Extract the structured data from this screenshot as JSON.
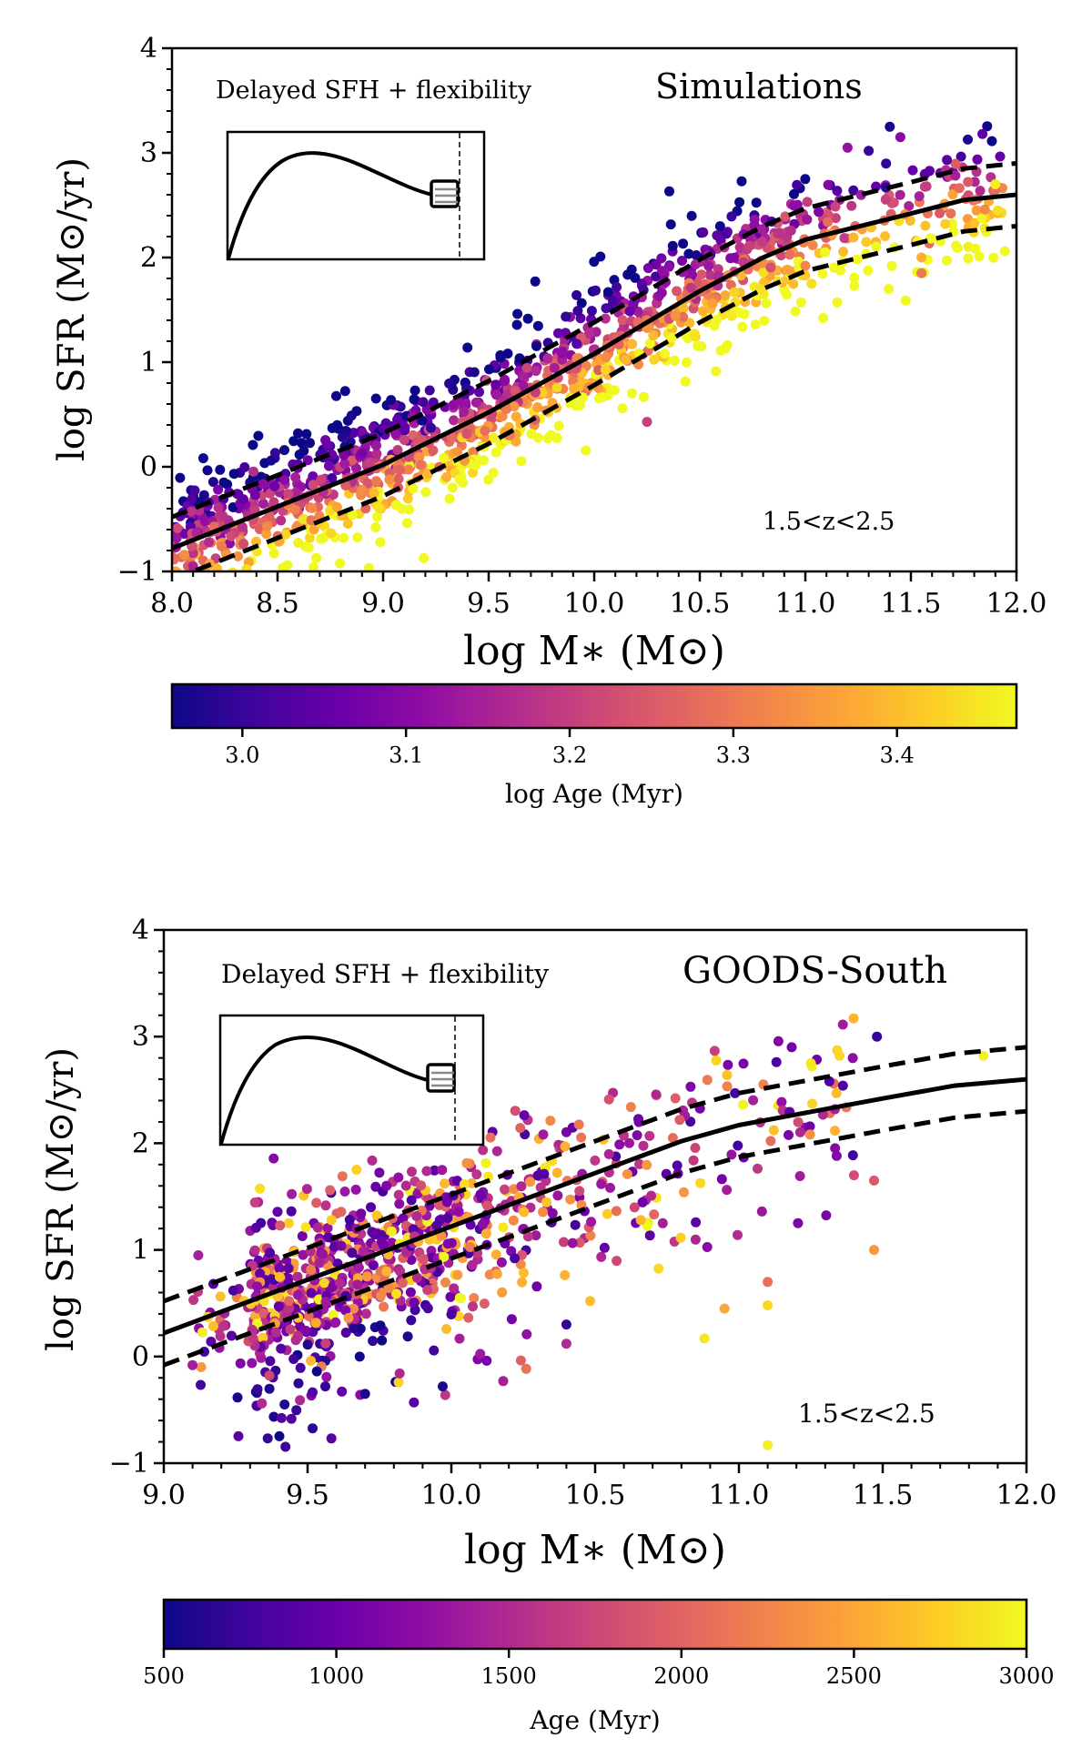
{
  "chart_data": [
    {
      "type": "scatter",
      "panel": "top",
      "title": "Simulations",
      "subtitle": "Delayed SFH + flexibility",
      "annotation": "1.5<z<2.5",
      "xlabel": "log M∗ (M⊙)",
      "ylabel": "log SFR (M⊙/yr)",
      "xlim": [
        8.0,
        12.0
      ],
      "ylim": [
        -1,
        4
      ],
      "xticks": [
        "8.0",
        "8.5",
        "9.0",
        "9.5",
        "10.0",
        "10.5",
        "11.0",
        "11.5",
        "12.0"
      ],
      "xtick_values": [
        8.0,
        8.5,
        9.0,
        9.5,
        10.0,
        10.5,
        11.0,
        11.5,
        12.0
      ],
      "yticks": [
        "−1",
        "0",
        "1",
        "2",
        "3",
        "4"
      ],
      "ytick_values": [
        -1,
        0,
        1,
        2,
        3,
        4
      ],
      "grid": false,
      "colorbar": {
        "label": "log Age (Myr)",
        "range": [
          2.957,
          3.473
        ],
        "ticks": [
          "3.0",
          "3.1",
          "3.2",
          "3.3",
          "3.4"
        ],
        "tick_values": [
          3.0,
          3.1,
          3.2,
          3.3,
          3.4
        ],
        "colormap": "plasma",
        "placement": "bottom"
      },
      "main_sequence": {
        "x": [
          8.0,
          8.5,
          9.0,
          9.5,
          10.0,
          10.5,
          10.8,
          11.0,
          11.5,
          11.75,
          12.0
        ],
        "y": [
          -0.78,
          -0.38,
          0.02,
          0.52,
          1.08,
          1.68,
          2.0,
          2.17,
          2.42,
          2.55,
          2.6
        ],
        "style": "solid"
      },
      "scatter_band": {
        "dex": 0.3,
        "style": "dashed"
      },
      "point_cloud": {
        "count": 1400,
        "x_range": [
          8.0,
          11.95
        ],
        "scatter_dex": 0.32,
        "age_trend": "older (higher log Age) below the main sequence, younger above; older at high mass"
      },
      "points_highlight": [
        {
          "x": 11.4,
          "y": 3.25,
          "c": 2.97
        },
        {
          "x": 11.3,
          "y": 3.02,
          "c": 3.0
        },
        {
          "x": 11.45,
          "y": 3.15,
          "c": 3.1
        },
        {
          "x": 11.2,
          "y": 3.05,
          "c": 3.12
        },
        {
          "x": 11.9,
          "y": 2.7,
          "c": 3.46
        },
        {
          "x": 11.85,
          "y": 2.28,
          "c": 3.45
        },
        {
          "x": 11.55,
          "y": 1.85,
          "c": 3.3
        },
        {
          "x": 11.55,
          "y": 2.0,
          "c": 3.38
        },
        {
          "x": 10.25,
          "y": 0.43,
          "c": 3.2
        },
        {
          "x": 9.6,
          "y": 0.3,
          "c": 3.3
        },
        {
          "x": 8.55,
          "y": -0.35,
          "c": 3.3
        },
        {
          "x": 8.1,
          "y": -0.95,
          "c": 3.15
        }
      ]
    },
    {
      "type": "scatter",
      "panel": "bottom",
      "title": "GOODS-South",
      "subtitle": "Delayed SFH + flexibility",
      "annotation": "1.5<z<2.5",
      "xlabel": "log M∗ (M⊙)",
      "ylabel": "log SFR (M⊙/yr)",
      "xlim": [
        9.0,
        12.0
      ],
      "ylim": [
        -1,
        4
      ],
      "xticks": [
        "9.0",
        "9.5",
        "10.0",
        "10.5",
        "11.0",
        "11.5",
        "12.0"
      ],
      "xtick_values": [
        9.0,
        9.5,
        10.0,
        10.5,
        11.0,
        11.5,
        12.0
      ],
      "yticks": [
        "−1",
        "0",
        "1",
        "2",
        "3",
        "4"
      ],
      "ytick_values": [
        -1,
        0,
        1,
        2,
        3,
        4
      ],
      "grid": false,
      "colorbar": {
        "label": "Age (Myr)",
        "range": [
          500,
          3000
        ],
        "ticks": [
          "500",
          "1000",
          "1500",
          "2000",
          "2500",
          "3000"
        ],
        "tick_values": [
          500,
          1000,
          1500,
          2000,
          2500,
          3000
        ],
        "colormap": "plasma",
        "placement": "bottom"
      },
      "main_sequence": {
        "x": [
          9.0,
          9.5,
          10.0,
          10.5,
          10.8,
          11.0,
          11.2,
          11.5,
          11.75,
          12.0
        ],
        "y": [
          0.22,
          0.72,
          1.22,
          1.72,
          2.02,
          2.17,
          2.27,
          2.42,
          2.54,
          2.6
        ],
        "style": "solid"
      },
      "scatter_band": {
        "dex": 0.3,
        "style": "dashed"
      },
      "point_cloud": {
        "count": 950,
        "x_range": [
          9.1,
          11.5
        ],
        "scatter_dex": 0.38,
        "age_trend": "mixed ages; young (dark) outliers below the sequence at low mass"
      },
      "points_highlight": [
        {
          "x": 11.48,
          "y": 3.0,
          "c": 700
        },
        {
          "x": 11.25,
          "y": 2.75,
          "c": 2900
        },
        {
          "x": 11.35,
          "y": 2.82,
          "c": 2800
        },
        {
          "x": 11.85,
          "y": 2.82,
          "c": 2950
        },
        {
          "x": 11.47,
          "y": 1.0,
          "c": 2400
        },
        {
          "x": 11.4,
          "y": 1.7,
          "c": 1800
        },
        {
          "x": 11.47,
          "y": 1.65,
          "c": 1900
        },
        {
          "x": 11.1,
          "y": 0.7,
          "c": 2100
        },
        {
          "x": 11.1,
          "y": 0.48,
          "c": 2800
        },
        {
          "x": 10.95,
          "y": 0.45,
          "c": 2500
        },
        {
          "x": 10.88,
          "y": 0.17,
          "c": 2900
        },
        {
          "x": 11.1,
          "y": -0.83,
          "c": 2950
        },
        {
          "x": 10.4,
          "y": 0.12,
          "c": 1500
        },
        {
          "x": 10.4,
          "y": 0.3,
          "c": 700
        },
        {
          "x": 9.13,
          "y": -0.1,
          "c": 2400
        },
        {
          "x": 9.1,
          "y": -0.08,
          "c": 1400
        },
        {
          "x": 9.42,
          "y": -0.45,
          "c": 600
        },
        {
          "x": 9.7,
          "y": -0.35,
          "c": 600
        },
        {
          "x": 9.87,
          "y": -0.43,
          "c": 900
        },
        {
          "x": 9.97,
          "y": -0.28,
          "c": 600
        },
        {
          "x": 9.12,
          "y": 0.95,
          "c": 1400
        }
      ]
    }
  ],
  "insets": [
    {
      "panel": "top",
      "description": "delayed SFH curve with recent burst/quench flexibility",
      "icon": "sfh-curve-icon"
    },
    {
      "panel": "bottom",
      "description": "delayed SFH curve with recent burst/quench flexibility",
      "icon": "sfh-curve-icon"
    }
  ]
}
